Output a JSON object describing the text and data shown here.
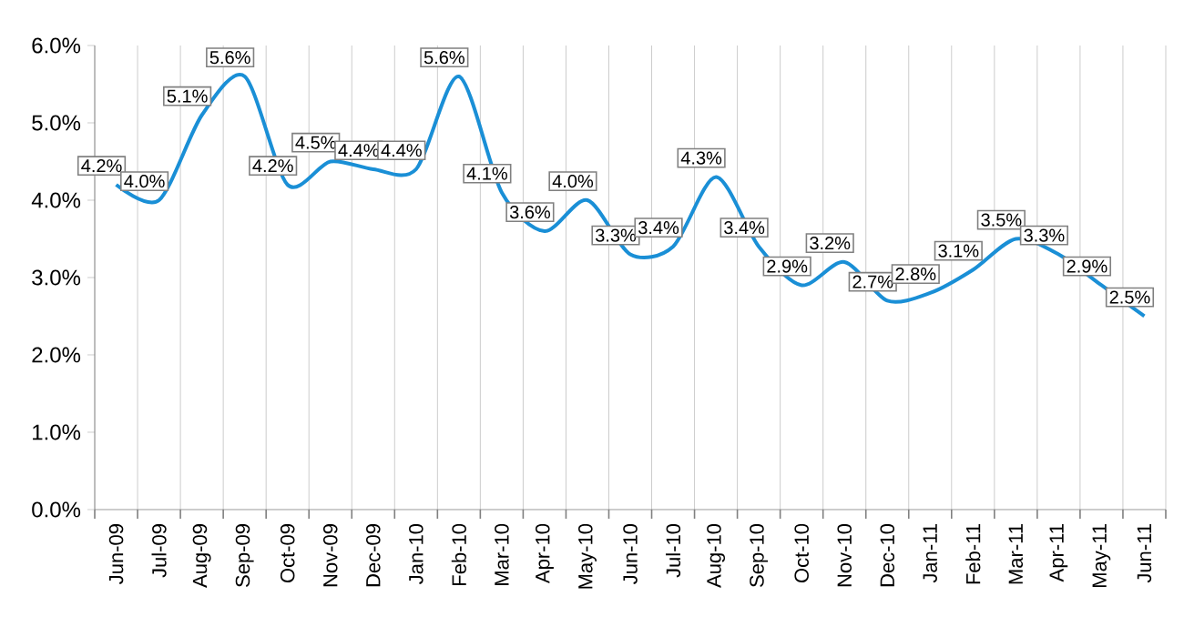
{
  "chart_data": {
    "type": "line",
    "categories": [
      "Jun-09",
      "Jul-09",
      "Aug-09",
      "Sep-09",
      "Oct-09",
      "Nov-09",
      "Dec-09",
      "Jan-10",
      "Feb-10",
      "Mar-10",
      "Apr-10",
      "May-10",
      "Jun-10",
      "Jul-10",
      "Aug-10",
      "Sep-10",
      "Oct-10",
      "Nov-10",
      "Dec-10",
      "Jan-11",
      "Feb-11",
      "Mar-11",
      "Apr-11",
      "May-11",
      "Jun-11"
    ],
    "series": [
      {
        "color": "#1a8fd6",
        "values": [
          4.2,
          4.0,
          5.1,
          5.6,
          4.2,
          4.5,
          4.4,
          4.4,
          5.6,
          4.1,
          3.6,
          4.0,
          3.3,
          3.4,
          4.3,
          3.4,
          2.9,
          3.2,
          2.7,
          2.8,
          3.1,
          3.5,
          3.3,
          2.9,
          2.5
        ],
        "value_labels": [
          "4.2%",
          "4.0%",
          "5.1%",
          "5.6%",
          "4.2%",
          "4.5%",
          "4.4%",
          "4.4%",
          "5.6%",
          "4.1%",
          "3.6%",
          "4.0%",
          "3.3%",
          "3.4%",
          "4.3%",
          "3.4%",
          "2.9%",
          "3.2%",
          "2.7%",
          "2.8%",
          "3.1%",
          "3.5%",
          "3.3%",
          "2.9%",
          "2.5%"
        ]
      }
    ],
    "ylim": [
      0,
      6
    ],
    "yticks": [
      {
        "value": 0,
        "label": "0.0%"
      },
      {
        "value": 1,
        "label": "1.0%"
      },
      {
        "value": 2,
        "label": "2.0%"
      },
      {
        "value": 3,
        "label": "3.0%"
      },
      {
        "value": 4,
        "label": "4.0%"
      },
      {
        "value": 5,
        "label": "5.0%"
      },
      {
        "value": 6,
        "label": "6.0%"
      }
    ],
    "grid": "x",
    "marker": "none",
    "line_style": "solid"
  }
}
